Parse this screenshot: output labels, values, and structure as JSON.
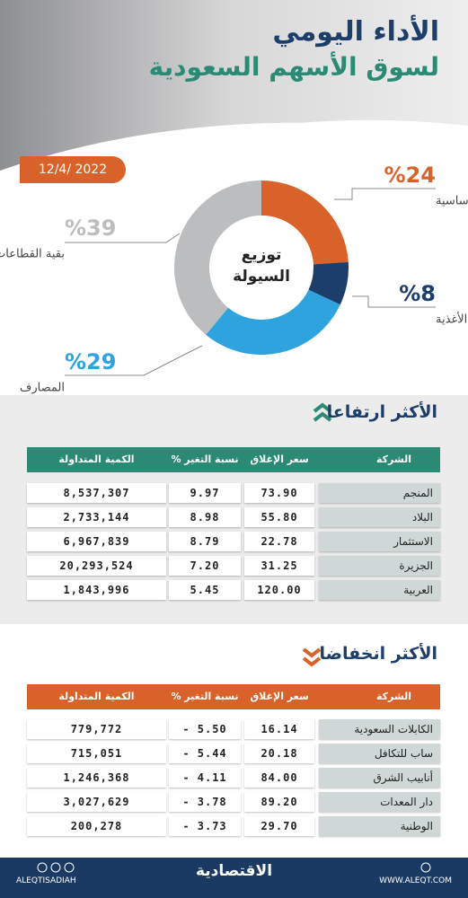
{
  "header": {
    "title": "الأداء اليومي",
    "subtitle": "لسوق الأسهم السعودية",
    "date": "12/4/ 2022"
  },
  "chart_data": {
    "type": "pie",
    "donut": true,
    "title": "توزيع السيولة",
    "categories": [
      "المواد الأساسية",
      "تجزئة الأغذية",
      "المصارف",
      "بقية القطاعات"
    ],
    "values": [
      24,
      8,
      29,
      39
    ],
    "value_labels": [
      "%24",
      "%8",
      "%29",
      "%39"
    ],
    "colors": [
      "#d9622b",
      "#1d3d6b",
      "#2fa3de",
      "#bcbdbf"
    ]
  },
  "gainers": {
    "title": "الأكثر ارتفاعا",
    "columns": [
      "الشركة",
      "سعر الإغلاق",
      "نسبة التغير %",
      "الكمية المتداولة"
    ],
    "rows": [
      [
        "المنجم",
        "73.90",
        "9.97",
        "8,537,307"
      ],
      [
        "البلاد",
        "55.80",
        "8.98",
        "2,733,144"
      ],
      [
        "الاستثمار",
        "22.78",
        "8.79",
        "6,967,839"
      ],
      [
        "الجزيرة",
        "31.25",
        "7.20",
        "20,293,524"
      ],
      [
        "العربية",
        "120.00",
        "5.45",
        "1,843,996"
      ]
    ]
  },
  "losers": {
    "title": "الأكثر انخفاضا",
    "columns": [
      "الشركة",
      "سعر الإغلاق",
      "نسبة التغير %",
      "الكمية المتداولة"
    ],
    "rows": [
      [
        "الكابلات السعودية",
        "16.14",
        "- 5.50",
        "779,772"
      ],
      [
        "ساب للتكافل",
        "20.18",
        "- 5.44",
        "715,051"
      ],
      [
        "أنابيب الشرق",
        "84.00",
        "- 4.11",
        "1,246,368"
      ],
      [
        "دار المعدات",
        "89.20",
        "- 3.78",
        "3,027,629"
      ],
      [
        "الوطنية",
        "29.70",
        "- 3.73",
        "200,278"
      ]
    ]
  },
  "footer": {
    "handle": "ALEQTISADIAH",
    "logo": "الاقتصادية",
    "website": "WWW.ALEQT.COM"
  }
}
